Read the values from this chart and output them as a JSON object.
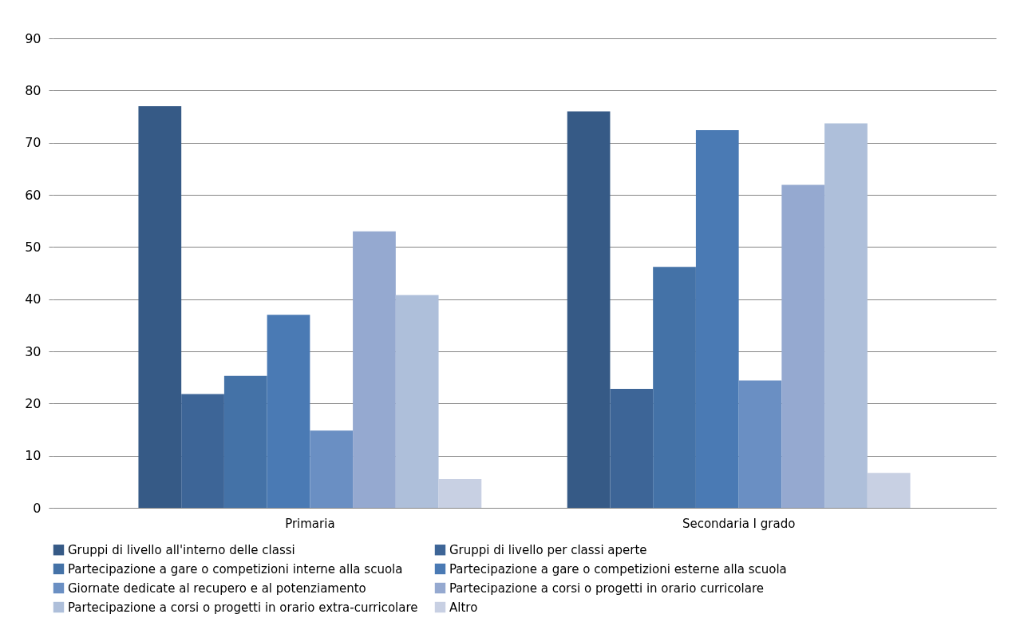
{
  "chart_data": {
    "type": "bar",
    "categories": [
      "Primaria",
      "Secondaria I grado"
    ],
    "series": [
      {
        "name": "Gruppi di livello all'interno delle classi",
        "color": "#365a86",
        "values": [
          77,
          76
        ]
      },
      {
        "name": "Gruppi di livello per classi aperte",
        "color": "#3d6597",
        "values": [
          21.8,
          22.8
        ]
      },
      {
        "name": "Partecipazione a gare o competizioni interne alla scuola",
        "color": "#4472a7",
        "values": [
          25.3,
          46.2
        ]
      },
      {
        "name": "Partecipazione a gare o competizioni esterne alla scuola",
        "color": "#4a7ab4",
        "values": [
          37,
          72.4
        ]
      },
      {
        "name": "Giornate dedicate al recupero e al potenziamento",
        "color": "#6a8fc3",
        "values": [
          14.8,
          24.4
        ]
      },
      {
        "name": "Partecipazione a corsi o progetti in orario curricolare",
        "color": "#95a9d0",
        "values": [
          53,
          61.9
        ]
      },
      {
        "name": "Partecipazione a corsi o progetti in orario extra-curricolare",
        "color": "#aebfda",
        "values": [
          40.8,
          73.7
        ]
      },
      {
        "name": "Altro",
        "color": "#c8d0e3",
        "values": [
          5.5,
          6.7
        ]
      }
    ],
    "ylim": [
      0,
      90
    ],
    "yticks": [
      0,
      10,
      20,
      30,
      40,
      50,
      60,
      70,
      80,
      90
    ],
    "grid": "y",
    "legend": "bottom"
  }
}
